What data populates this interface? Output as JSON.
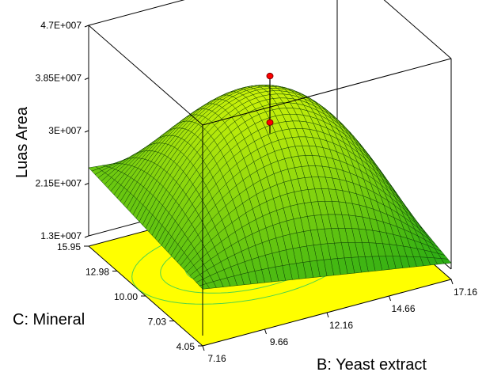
{
  "chart_data": {
    "type": "surface",
    "title": "",
    "zlabel": "Luas Area",
    "xlabel": "B: Yeast extract",
    "ylabel": "C: Mineral",
    "z_ticks": [
      "1.3E+007",
      "2.15E+007",
      "3E+007",
      "3.85E+007",
      "4.7E+007"
    ],
    "x_ticks": [
      "7.16",
      "9.66",
      "12.16",
      "14.66",
      "17.16"
    ],
    "y_ticks": [
      "4.05",
      "7.03",
      "10.00",
      "12.98",
      "15.95"
    ],
    "zlim": [
      13000000,
      47000000
    ],
    "xlim": [
      7.16,
      17.16
    ],
    "ylim": [
      4.05,
      15.95
    ],
    "corner_values": {
      "x_min_y_min": 20500000,
      "x_min_y_max": 24000000,
      "x_max_y_max": 20000000,
      "x_max_y_min": 14000000
    },
    "surface_peak": 38500000,
    "design_points": [
      {
        "x": 12.16,
        "y": 10.0,
        "z": 41500000,
        "position": "above surface"
      },
      {
        "x": 12.16,
        "y": 10.0,
        "z": 34000000,
        "position": "below surface"
      }
    ],
    "contour_floor": true,
    "colors": {
      "surface_low": "#2cad14",
      "surface_high": "#c8f00a",
      "floor": "#ffff00",
      "contour": "#4fd44a",
      "point": "#ff0000"
    }
  }
}
